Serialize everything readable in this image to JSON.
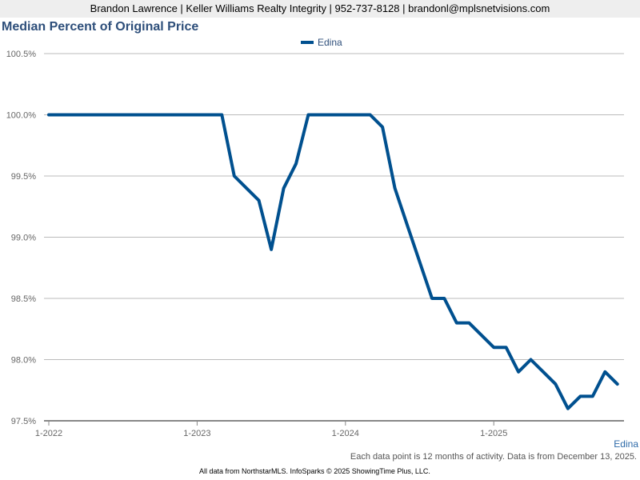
{
  "header": {
    "text": "Brandon Lawrence | Keller Williams Realty Integrity | 952-737-8128 | brandonl@mplsnetvisions.com"
  },
  "footer": {
    "series_label": "Edina",
    "note": "Each data point is 12 months of activity. Data is from December 13, 2025.",
    "credits": "All data from NorthstarMLS. InfoSparks © 2025 ShowingTime Plus, LLC."
  },
  "chart_data": {
    "type": "line",
    "title": "Median Percent of Original Price",
    "legend": [
      "Edina"
    ],
    "legend_position": "top",
    "grid": true,
    "color": "#00508f",
    "ylim": [
      97.5,
      100.5
    ],
    "yticks": [
      "97.5%",
      "98.0%",
      "98.5%",
      "99.0%",
      "99.5%",
      "100.0%",
      "100.5%"
    ],
    "xticks": [
      "1-2022",
      "1-2023",
      "1-2024",
      "1-2025"
    ],
    "x_start": "1-2022",
    "x_end": "11-2025",
    "series": [
      {
        "name": "Edina",
        "values": [
          100.0,
          100.0,
          100.0,
          100.0,
          100.0,
          100.0,
          100.0,
          100.0,
          100.0,
          100.0,
          100.0,
          100.0,
          100.0,
          100.0,
          100.0,
          99.5,
          99.4,
          99.3,
          98.9,
          99.4,
          99.6,
          100.0,
          100.0,
          100.0,
          100.0,
          100.0,
          100.0,
          99.9,
          99.4,
          99.1,
          98.8,
          98.5,
          98.5,
          98.3,
          98.3,
          98.2,
          98.1,
          98.1,
          97.9,
          98.0,
          97.9,
          97.8,
          97.6,
          97.7,
          97.7,
          97.9,
          97.8
        ]
      }
    ]
  }
}
